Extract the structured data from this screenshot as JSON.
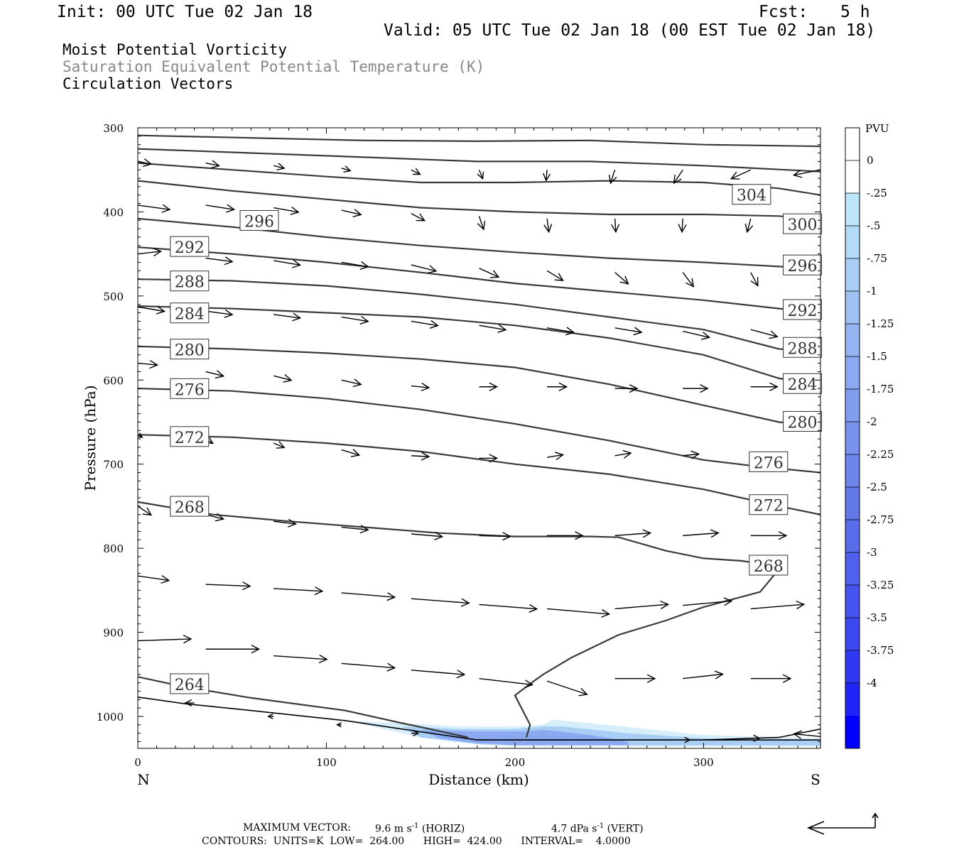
{
  "header": {
    "init": "Init: 00 UTC Tue 02 Jan 18",
    "fcst_label": "Fcst:",
    "fcst_value": "5 h",
    "valid": "Valid: 05 UTC Tue 02 Jan 18 (00 EST Tue 02 Jan 18)"
  },
  "titles": {
    "line1": "Moist Potential Vorticity",
    "line2": "Saturation Equivalent Potential Temperature (K)",
    "line3": "Circulation Vectors"
  },
  "colors": {
    "axis": "#000000",
    "contour": "#3a3a3a",
    "vector": "#000000",
    "title_gray": "#888888",
    "pv_light": "#d6eefa",
    "pv_dark": "#0000ff"
  },
  "chart_data": {
    "type": "cross-section",
    "xlabel": "Distance (km)",
    "ylabel": "Pressure (hPa)",
    "x_left_label": "N",
    "x_right_label": "S",
    "xlim": [
      0,
      362
    ],
    "ylim": [
      1038,
      300
    ],
    "y_scale": "linear-pressure",
    "x_ticks": [
      "0",
      "100",
      "200",
      "300"
    ],
    "y_ticks": [
      "300",
      "400",
      "500",
      "600",
      "700",
      "800",
      "900",
      "1000"
    ],
    "colorbar": {
      "unit": "PVU",
      "labels": [
        "0",
        "-.25",
        "-.5",
        "-.75",
        "-1",
        "-1.25",
        "-1.5",
        "-1.75",
        "-2",
        "-2.25",
        "-2.5",
        "-2.75",
        "-3",
        "-3.25",
        "-3.5",
        "-3.75",
        "-4"
      ],
      "colors": [
        "#ffffff",
        "#ffffff",
        "#bde6fb",
        "#b3daf8",
        "#a9cef6",
        "#9fc2f4",
        "#95b5f2",
        "#8ba9f0",
        "#819dee",
        "#7791ec",
        "#6d85ea",
        "#6378e8",
        "#596cea",
        "#4f60ec",
        "#4554ee",
        "#3b48f0",
        "#3138f2",
        "#2024f6",
        "#0000ff"
      ]
    },
    "contours": [
      {
        "label": "264",
        "x": [
          0,
          25,
          60,
          110,
          140,
          155,
          175
        ],
        "y": [
          953,
          965,
          978,
          993,
          1008,
          1015,
          1025
        ]
      },
      {
        "label": "268",
        "x": [
          0,
          40,
          80,
          120,
          160,
          200,
          240,
          255,
          280,
          300,
          320,
          335
        ],
        "y": [
          745,
          760,
          768,
          775,
          782,
          786,
          786,
          787,
          803,
          812,
          815,
          820
        ]
      },
      {
        "label": "272",
        "x": [
          0,
          50,
          100,
          150,
          200,
          250,
          300,
          320,
          340,
          362
        ],
        "y": [
          665,
          668,
          675,
          685,
          700,
          712,
          730,
          740,
          750,
          760
        ]
      },
      {
        "label": "276",
        "x": [
          0,
          50,
          100,
          150,
          200,
          250,
          300,
          330,
          362
        ],
        "y": [
          610,
          613,
          622,
          635,
          652,
          672,
          695,
          703,
          710
        ]
      },
      {
        "label": "280",
        "x": [
          0,
          50,
          100,
          150,
          200,
          250,
          300,
          340,
          362
        ],
        "y": [
          560,
          563,
          568,
          575,
          585,
          605,
          630,
          650,
          655
        ]
      },
      {
        "label": "284",
        "x": [
          0,
          50,
          100,
          150,
          200,
          250,
          300,
          340,
          362
        ],
        "y": [
          512,
          515,
          520,
          525,
          535,
          550,
          570,
          598,
          605
        ]
      },
      {
        "label": "288",
        "x": [
          0,
          50,
          100,
          150,
          200,
          250,
          300,
          340,
          362
        ],
        "y": [
          480,
          482,
          488,
          498,
          510,
          525,
          540,
          563,
          565
        ]
      },
      {
        "label": "292",
        "x": [
          0,
          50,
          100,
          150,
          200,
          250,
          300,
          340,
          362
        ],
        "y": [
          442,
          450,
          460,
          472,
          485,
          495,
          505,
          515,
          520
        ]
      },
      {
        "label": "296",
        "x": [
          0,
          50,
          100,
          150,
          200,
          250,
          300,
          340,
          362
        ],
        "y": [
          408,
          418,
          430,
          440,
          448,
          455,
          460,
          465,
          468
        ]
      },
      {
        "label": "300",
        "x": [
          0,
          50,
          100,
          150,
          200,
          250,
          300,
          340,
          362
        ],
        "y": [
          363,
          375,
          385,
          395,
          400,
          403,
          403,
          405,
          410
        ]
      },
      {
        "label": "304",
        "x": [
          0,
          50,
          100,
          150,
          200,
          250,
          300,
          340,
          362
        ],
        "y": [
          342,
          350,
          358,
          365,
          365,
          363,
          365,
          372,
          380
        ]
      },
      {
        "label": "",
        "x": [
          0,
          60,
          120,
          180,
          240,
          300,
          362
        ],
        "y": [
          325,
          330,
          335,
          340,
          340,
          345,
          352
        ]
      },
      {
        "label": "",
        "x": [
          0,
          60,
          120,
          180,
          240,
          300,
          362
        ],
        "y": [
          309,
          312,
          315,
          316,
          315,
          320,
          322
        ]
      }
    ],
    "contour_labels": [
      {
        "text": "304",
        "x": 316,
        "y": 380
      },
      {
        "text": "300",
        "x": 343,
        "y": 415
      },
      {
        "text": "296",
        "x": 55,
        "y": 411
      },
      {
        "text": "296",
        "x": 343,
        "y": 464
      },
      {
        "text": "292",
        "x": 18,
        "y": 442
      },
      {
        "text": "292",
        "x": 343,
        "y": 517
      },
      {
        "text": "288",
        "x": 18,
        "y": 483
      },
      {
        "text": "288",
        "x": 343,
        "y": 562
      },
      {
        "text": "284",
        "x": 18,
        "y": 521
      },
      {
        "text": "284",
        "x": 343,
        "y": 605
      },
      {
        "text": "280",
        "x": 18,
        "y": 564
      },
      {
        "text": "280",
        "x": 343,
        "y": 650
      },
      {
        "text": "276",
        "x": 18,
        "y": 611
      },
      {
        "text": "276",
        "x": 325,
        "y": 698
      },
      {
        "text": "272",
        "x": 18,
        "y": 668
      },
      {
        "text": "272",
        "x": 325,
        "y": 749
      },
      {
        "text": "268",
        "x": 18,
        "y": 751
      },
      {
        "text": "268",
        "x": 325,
        "y": 821
      },
      {
        "text": "264",
        "x": 18,
        "y": 962
      }
    ],
    "terrain": {
      "x": [
        0,
        25,
        60,
        110,
        140,
        180,
        240,
        300,
        340,
        362
      ],
      "y": [
        977,
        985,
        993,
        1005,
        1015,
        1028,
        1028,
        1028,
        1025,
        1015
      ]
    },
    "pv_region": {
      "x": [
        110,
        140,
        170,
        200,
        215,
        220,
        240,
        270,
        300,
        362,
        362,
        300,
        250,
        200,
        180,
        150,
        120
      ],
      "y": [
        1005,
        1008,
        1012,
        1012,
        1010,
        1004,
        1008,
        1015,
        1022,
        1026,
        1035,
        1035,
        1035,
        1035,
        1033,
        1025,
        1010
      ]
    },
    "mpv_zero_line": {
      "x": [
        340,
        330,
        300,
        280,
        255,
        230,
        215,
        210,
        200,
        208,
        206
      ],
      "y": [
        825,
        852,
        870,
        886,
        903,
        930,
        950,
        958,
        975,
        1010,
        1025
      ]
    },
    "vectors": [
      {
        "x": 0,
        "y": 340,
        "u": 15,
        "w": 3
      },
      {
        "x": 36,
        "y": 342,
        "u": 15,
        "w": 3
      },
      {
        "x": 72,
        "y": 345,
        "u": 12,
        "w": 3
      },
      {
        "x": 108,
        "y": 348,
        "u": 10,
        "w": 3
      },
      {
        "x": 145,
        "y": 350,
        "u": 10,
        "w": 5
      },
      {
        "x": 181,
        "y": 350,
        "u": 4,
        "w": 10
      },
      {
        "x": 217,
        "y": 350,
        "u": -1,
        "w": 12
      },
      {
        "x": 253,
        "y": 350,
        "u": -5,
        "w": 15
      },
      {
        "x": 289,
        "y": 350,
        "u": -10,
        "w": 15
      },
      {
        "x": 325,
        "y": 350,
        "u": -22,
        "w": 10
      },
      {
        "x": 362,
        "y": 350,
        "u": -30,
        "w": 6
      },
      {
        "x": 0,
        "y": 392,
        "u": 36,
        "w": 5
      },
      {
        "x": 36,
        "y": 392,
        "u": 32,
        "w": 5
      },
      {
        "x": 72,
        "y": 395,
        "u": 28,
        "w": 5
      },
      {
        "x": 108,
        "y": 398,
        "u": 22,
        "w": 5
      },
      {
        "x": 145,
        "y": 402,
        "u": 15,
        "w": 8
      },
      {
        "x": 181,
        "y": 405,
        "u": 5,
        "w": 15
      },
      {
        "x": 217,
        "y": 408,
        "u": 2,
        "w": 15
      },
      {
        "x": 253,
        "y": 408,
        "u": 1,
        "w": 15
      },
      {
        "x": 289,
        "y": 408,
        "u": -1,
        "w": 15
      },
      {
        "x": 325,
        "y": 408,
        "u": -4,
        "w": 15
      },
      {
        "x": 362,
        "y": 408,
        "u": -12,
        "w": 8
      },
      {
        "x": 0,
        "y": 450,
        "u": 26,
        "w": -3
      },
      {
        "x": 36,
        "y": 455,
        "u": 30,
        "w": 4
      },
      {
        "x": 72,
        "y": 458,
        "u": 30,
        "w": 5
      },
      {
        "x": 108,
        "y": 460,
        "u": 30,
        "w": 5
      },
      {
        "x": 145,
        "y": 463,
        "u": 28,
        "w": 7
      },
      {
        "x": 181,
        "y": 467,
        "u": 22,
        "w": 10
      },
      {
        "x": 217,
        "y": 470,
        "u": 18,
        "w": 11
      },
      {
        "x": 253,
        "y": 472,
        "u": 15,
        "w": 13
      },
      {
        "x": 289,
        "y": 472,
        "u": 12,
        "w": 16
      },
      {
        "x": 325,
        "y": 472,
        "u": 8,
        "w": 15
      },
      {
        "x": 0,
        "y": 513,
        "u": 30,
        "w": 5
      },
      {
        "x": 36,
        "y": 518,
        "u": 30,
        "w": 4
      },
      {
        "x": 72,
        "y": 522,
        "u": 30,
        "w": 4
      },
      {
        "x": 108,
        "y": 525,
        "u": 30,
        "w": 5
      },
      {
        "x": 145,
        "y": 530,
        "u": 30,
        "w": 5
      },
      {
        "x": 181,
        "y": 535,
        "u": 30,
        "w": 5
      },
      {
        "x": 217,
        "y": 538,
        "u": 30,
        "w": 5
      },
      {
        "x": 253,
        "y": 538,
        "u": 30,
        "w": 5
      },
      {
        "x": 289,
        "y": 542,
        "u": 30,
        "w": 7
      },
      {
        "x": 325,
        "y": 540,
        "u": 30,
        "w": 8
      },
      {
        "x": 0,
        "y": 580,
        "u": 22,
        "w": 2
      },
      {
        "x": 36,
        "y": 590,
        "u": 20,
        "w": 5
      },
      {
        "x": 72,
        "y": 595,
        "u": 20,
        "w": 5
      },
      {
        "x": 108,
        "y": 600,
        "u": 22,
        "w": 5
      },
      {
        "x": 145,
        "y": 607,
        "u": 20,
        "w": 2
      },
      {
        "x": 181,
        "y": 608,
        "u": 20,
        "w": 0
      },
      {
        "x": 217,
        "y": 608,
        "u": 22,
        "w": 0
      },
      {
        "x": 253,
        "y": 610,
        "u": 25,
        "w": 0
      },
      {
        "x": 289,
        "y": 610,
        "u": 28,
        "w": 0
      },
      {
        "x": 325,
        "y": 608,
        "u": 30,
        "w": 0
      },
      {
        "x": 0,
        "y": 665,
        "u": 5,
        "w": 3
      },
      {
        "x": 36,
        "y": 670,
        "u": 8,
        "w": 5
      },
      {
        "x": 72,
        "y": 675,
        "u": 12,
        "w": 5
      },
      {
        "x": 108,
        "y": 683,
        "u": 20,
        "w": 6
      },
      {
        "x": 145,
        "y": 690,
        "u": 20,
        "w": 1
      },
      {
        "x": 181,
        "y": 693,
        "u": 20,
        "w": 0
      },
      {
        "x": 217,
        "y": 692,
        "u": 18,
        "w": -3
      },
      {
        "x": 253,
        "y": 690,
        "u": 18,
        "w": -3
      },
      {
        "x": 289,
        "y": 690,
        "u": 18,
        "w": -2
      },
      {
        "x": 325,
        "y": 690,
        "u": 22,
        "w": 0
      },
      {
        "x": 0,
        "y": 750,
        "u": 15,
        "w": 10
      },
      {
        "x": 36,
        "y": 760,
        "u": 20,
        "w": 5
      },
      {
        "x": 72,
        "y": 768,
        "u": 25,
        "w": 3
      },
      {
        "x": 108,
        "y": 775,
        "u": 30,
        "w": 3
      },
      {
        "x": 145,
        "y": 783,
        "u": 35,
        "w": 3
      },
      {
        "x": 181,
        "y": 785,
        "u": 35,
        "w": 1
      },
      {
        "x": 217,
        "y": 785,
        "u": 40,
        "w": 0
      },
      {
        "x": 253,
        "y": 785,
        "u": 40,
        "w": -3
      },
      {
        "x": 289,
        "y": 785,
        "u": 40,
        "w": -3
      },
      {
        "x": 325,
        "y": 785,
        "u": 40,
        "w": 0
      },
      {
        "x": 0,
        "y": 833,
        "u": 35,
        "w": 5
      },
      {
        "x": 36,
        "y": 843,
        "u": 50,
        "w": 2
      },
      {
        "x": 72,
        "y": 848,
        "u": 55,
        "w": 3
      },
      {
        "x": 108,
        "y": 853,
        "u": 60,
        "w": 5
      },
      {
        "x": 145,
        "y": 860,
        "u": 65,
        "w": 5
      },
      {
        "x": 181,
        "y": 867,
        "u": 65,
        "w": 5
      },
      {
        "x": 217,
        "y": 872,
        "u": 70,
        "w": 6
      },
      {
        "x": 253,
        "y": 872,
        "u": 60,
        "w": -5
      },
      {
        "x": 289,
        "y": 868,
        "u": 55,
        "w": -5
      },
      {
        "x": 325,
        "y": 872,
        "u": 60,
        "w": -5
      },
      {
        "x": 0,
        "y": 910,
        "u": 60,
        "w": -2
      },
      {
        "x": 36,
        "y": 920,
        "u": 60,
        "w": 0
      },
      {
        "x": 72,
        "y": 928,
        "u": 60,
        "w": 4
      },
      {
        "x": 108,
        "y": 937,
        "u": 60,
        "w": 5
      },
      {
        "x": 145,
        "y": 945,
        "u": 60,
        "w": 5
      },
      {
        "x": 181,
        "y": 955,
        "u": 60,
        "w": 7
      },
      {
        "x": 217,
        "y": 958,
        "u": 45,
        "w": 15
      },
      {
        "x": 253,
        "y": 955,
        "u": 45,
        "w": 0
      },
      {
        "x": 289,
        "y": 955,
        "u": 45,
        "w": -5
      },
      {
        "x": 325,
        "y": 955,
        "u": 45,
        "w": 0
      },
      {
        "x": 30,
        "y": 984,
        "u": -10,
        "w": 0
      },
      {
        "x": 72,
        "y": 1000,
        "u": -6,
        "w": 0
      },
      {
        "x": 108,
        "y": 1010,
        "u": -5,
        "w": 0
      },
      {
        "x": 145,
        "y": 1020,
        "u": 8,
        "w": 0
      },
      {
        "x": 289,
        "y": 1028,
        "u": 8,
        "w": 0
      },
      {
        "x": 325,
        "y": 1026,
        "u": 10,
        "w": 0
      },
      {
        "x": 362,
        "y": 1024,
        "u": -30,
        "w": -3
      }
    ],
    "reference_vector": {
      "horiz": "9.6",
      "vert": "4.7"
    }
  },
  "footer": {
    "max_vector_label": "MAXIMUM VECTOR:",
    "max_vector_horiz": "9.6 m s",
    "horiz_tag": "(HORIZ)",
    "max_vector_vert": "4.7 dPa s",
    "vert_tag": "(VERT)",
    "exponent": "-1",
    "contours_line": "CONTOURS:  UNITS=K  LOW=  264.00      HIGH=  424.00      INTERVAL=    4.0000"
  }
}
